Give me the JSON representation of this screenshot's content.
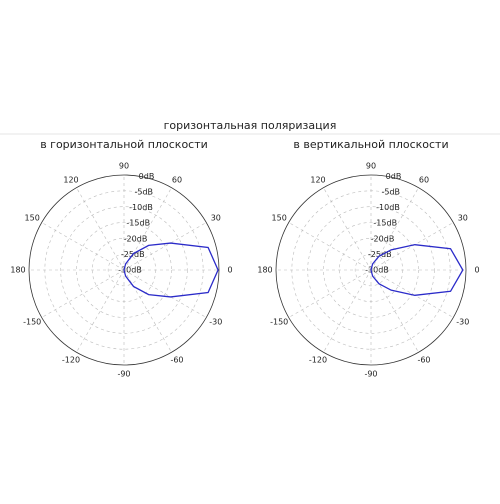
{
  "title": "горизонтальная поляризация",
  "chart_data": [
    {
      "type": "polar",
      "title": "в горизонтальной плоскости",
      "x": [
        -90,
        -75,
        -60,
        -45,
        -30,
        -15,
        0,
        15,
        30,
        45,
        60,
        75,
        90
      ],
      "series": [
        {
          "name": null,
          "color": "#2b2bc9",
          "values": [
            -30,
            -28,
            -24,
            -19,
            -13,
            -2.5,
            -0.3,
            -2.5,
            -13,
            -19,
            -24,
            -28,
            -30
          ]
        }
      ],
      "rlim": [
        -30,
        0
      ],
      "rticks": [
        {
          "value": 0,
          "label": "0dB"
        },
        {
          "value": -5,
          "label": "-5dB"
        },
        {
          "value": -10,
          "label": "-10dB"
        },
        {
          "value": -15,
          "label": "-15dB"
        },
        {
          "value": -20,
          "label": "-20dB"
        },
        {
          "value": -25,
          "label": "-25dB"
        },
        {
          "value": -30,
          "label": "-30dB"
        }
      ],
      "xticks": [
        0,
        30,
        60,
        90,
        120,
        150,
        180,
        -150,
        -120,
        -90,
        -60,
        -30
      ],
      "grid": true
    },
    {
      "type": "polar",
      "title": "в вертикальной плоскости",
      "x": [
        -90,
        -75,
        -60,
        -45,
        -30,
        -15,
        0,
        15,
        30,
        45,
        60,
        75,
        90
      ],
      "series": [
        {
          "name": null,
          "color": "#2b2bc9",
          "values": [
            -30,
            -28,
            -25,
            -21,
            -14,
            -4,
            -1,
            -4,
            -14,
            -21,
            -25,
            -28,
            -30
          ]
        }
      ],
      "rlim": [
        -30,
        0
      ],
      "rticks": [
        {
          "value": 0,
          "label": "0dB"
        },
        {
          "value": -5,
          "label": "-5dB"
        },
        {
          "value": -10,
          "label": "-10dB"
        },
        {
          "value": -15,
          "label": "-15dB"
        },
        {
          "value": -20,
          "label": "-20dB"
        },
        {
          "value": -25,
          "label": "-25dB"
        },
        {
          "value": -30,
          "label": "-30dB"
        }
      ],
      "xticks": [
        0,
        30,
        60,
        90,
        120,
        150,
        180,
        -150,
        -120,
        -90,
        -60,
        -30
      ],
      "grid": true
    }
  ]
}
